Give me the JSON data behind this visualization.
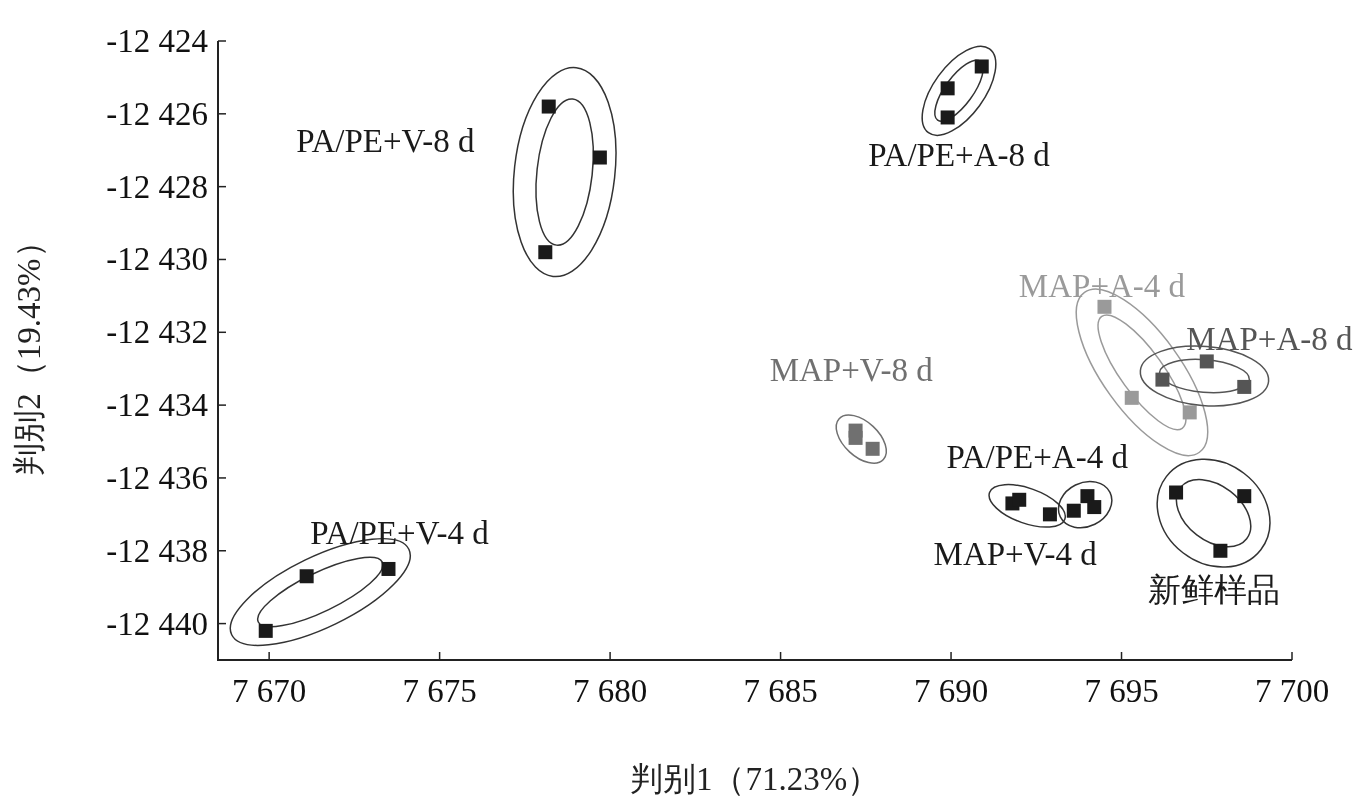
{
  "chart_data": {
    "type": "scatter",
    "xlabel": "判别1（71.23%）",
    "ylabel": "判别2（19.43%）",
    "marker": "square",
    "grid": false,
    "xlim": [
      7668.5,
      7700
    ],
    "ylim": [
      -12441,
      -12424
    ],
    "xticks": [
      {
        "value": 7670,
        "label": "7 670"
      },
      {
        "value": 7675,
        "label": "7 675"
      },
      {
        "value": 7680,
        "label": "7 680"
      },
      {
        "value": 7685,
        "label": "7 685"
      },
      {
        "value": 7690,
        "label": "7 690"
      },
      {
        "value": 7695,
        "label": "7 695"
      },
      {
        "value": 7700,
        "label": "7 700"
      }
    ],
    "yticks": [
      {
        "value": -12424,
        "label": "-12 424"
      },
      {
        "value": -12426,
        "label": "-12 426"
      },
      {
        "value": -12428,
        "label": "-12 428"
      },
      {
        "value": -12430,
        "label": "-12 430"
      },
      {
        "value": -12432,
        "label": "-12 432"
      },
      {
        "value": -12434,
        "label": "-12 434"
      },
      {
        "value": -12436,
        "label": "-12 436"
      },
      {
        "value": -12438,
        "label": "-12 438"
      },
      {
        "value": -12440,
        "label": "-12 440"
      }
    ],
    "series": [
      {
        "name": "PA/PE+V-4 d",
        "color": "#1a1a1a",
        "x": [
          7669.9,
          7671.1,
          7673.5
        ],
        "values": [
          -12440.2,
          -12438.7,
          -12438.5
        ]
      },
      {
        "name": "PA/PE+V-8 d",
        "color": "#1a1a1a",
        "x": [
          7678.2,
          7679.7,
          7678.1
        ],
        "values": [
          -12425.8,
          -12427.2,
          -12429.8
        ]
      },
      {
        "name": "PA/PE+A-8 d",
        "color": "#1a1a1a",
        "x": [
          7689.9,
          7690.9,
          7689.9
        ],
        "values": [
          -12425.3,
          -12424.7,
          -12426.1
        ]
      },
      {
        "name": "MAP+V-8 d",
        "color": "#707070",
        "x": [
          7687.2,
          7687.2,
          7687.7
        ],
        "values": [
          -12434.7,
          -12434.9,
          -12435.2
        ]
      },
      {
        "name": "MAP+A-4 d",
        "color": "#9a9a9a",
        "x": [
          7694.5,
          7695.3,
          7697.0
        ],
        "values": [
          -12431.3,
          -12433.8,
          -12434.2
        ]
      },
      {
        "name": "MAP+A-8 d",
        "color": "#555555",
        "x": [
          7696.2,
          7697.5,
          7698.6
        ],
        "values": [
          -12433.3,
          -12432.8,
          -12433.5
        ]
      },
      {
        "name": "PA/PE+A-4 d",
        "color": "#1a1a1a",
        "x": [
          7691.8,
          7692.0,
          7692.9
        ],
        "values": [
          -12436.7,
          -12436.6,
          -12437.0
        ]
      },
      {
        "name": "MAP+V-4 d",
        "color": "#1a1a1a",
        "x": [
          7693.6,
          7694.0,
          7694.2
        ],
        "values": [
          -12436.9,
          -12436.5,
          -12436.8
        ]
      },
      {
        "name": "新鲜样品",
        "color": "#1a1a1a",
        "x": [
          7696.6,
          7698.6,
          7697.9
        ],
        "values": [
          -12436.4,
          -12436.5,
          -12438.0
        ]
      }
    ]
  }
}
